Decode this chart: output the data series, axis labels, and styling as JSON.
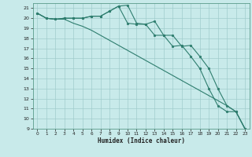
{
  "xlabel": "Humidex (Indice chaleur)",
  "bg_color": "#c8eaea",
  "grid_color": "#a0cccc",
  "line_color": "#2e7d6e",
  "x_values": [
    0,
    1,
    2,
    3,
    4,
    5,
    6,
    7,
    8,
    9,
    10,
    11,
    12,
    13,
    14,
    15,
    16,
    17,
    18,
    19,
    20,
    21,
    22,
    23
  ],
  "line1": [
    20.5,
    20.0,
    19.9,
    20.0,
    20.0,
    20.0,
    20.2,
    20.2,
    20.7,
    21.2,
    21.3,
    19.5,
    19.4,
    19.7,
    18.3,
    18.3,
    17.2,
    17.3,
    16.2,
    15.0,
    13.0,
    11.3,
    10.7,
    9.0
  ],
  "line2": [
    20.5,
    20.0,
    19.9,
    20.0,
    20.0,
    20.0,
    20.2,
    20.2,
    20.7,
    21.2,
    19.5,
    19.4,
    19.4,
    18.3,
    18.3,
    17.2,
    17.3,
    16.2,
    15.0,
    13.0,
    11.3,
    10.7,
    10.7,
    9.0
  ],
  "line3": [
    20.5,
    20.0,
    19.9,
    19.9,
    19.5,
    19.2,
    18.8,
    18.3,
    17.8,
    17.3,
    16.8,
    16.3,
    15.8,
    15.3,
    14.8,
    14.3,
    13.8,
    13.3,
    12.8,
    12.3,
    11.8,
    11.3,
    10.7,
    9.0
  ],
  "ylim": [
    9,
    21.5
  ],
  "xlim": [
    -0.5,
    23.5
  ],
  "yticks": [
    9,
    10,
    11,
    12,
    13,
    14,
    15,
    16,
    17,
    18,
    19,
    20,
    21
  ],
  "xticks": [
    0,
    1,
    2,
    3,
    4,
    5,
    6,
    7,
    8,
    9,
    10,
    11,
    12,
    13,
    14,
    15,
    16,
    17,
    18,
    19,
    20,
    21,
    22,
    23
  ]
}
